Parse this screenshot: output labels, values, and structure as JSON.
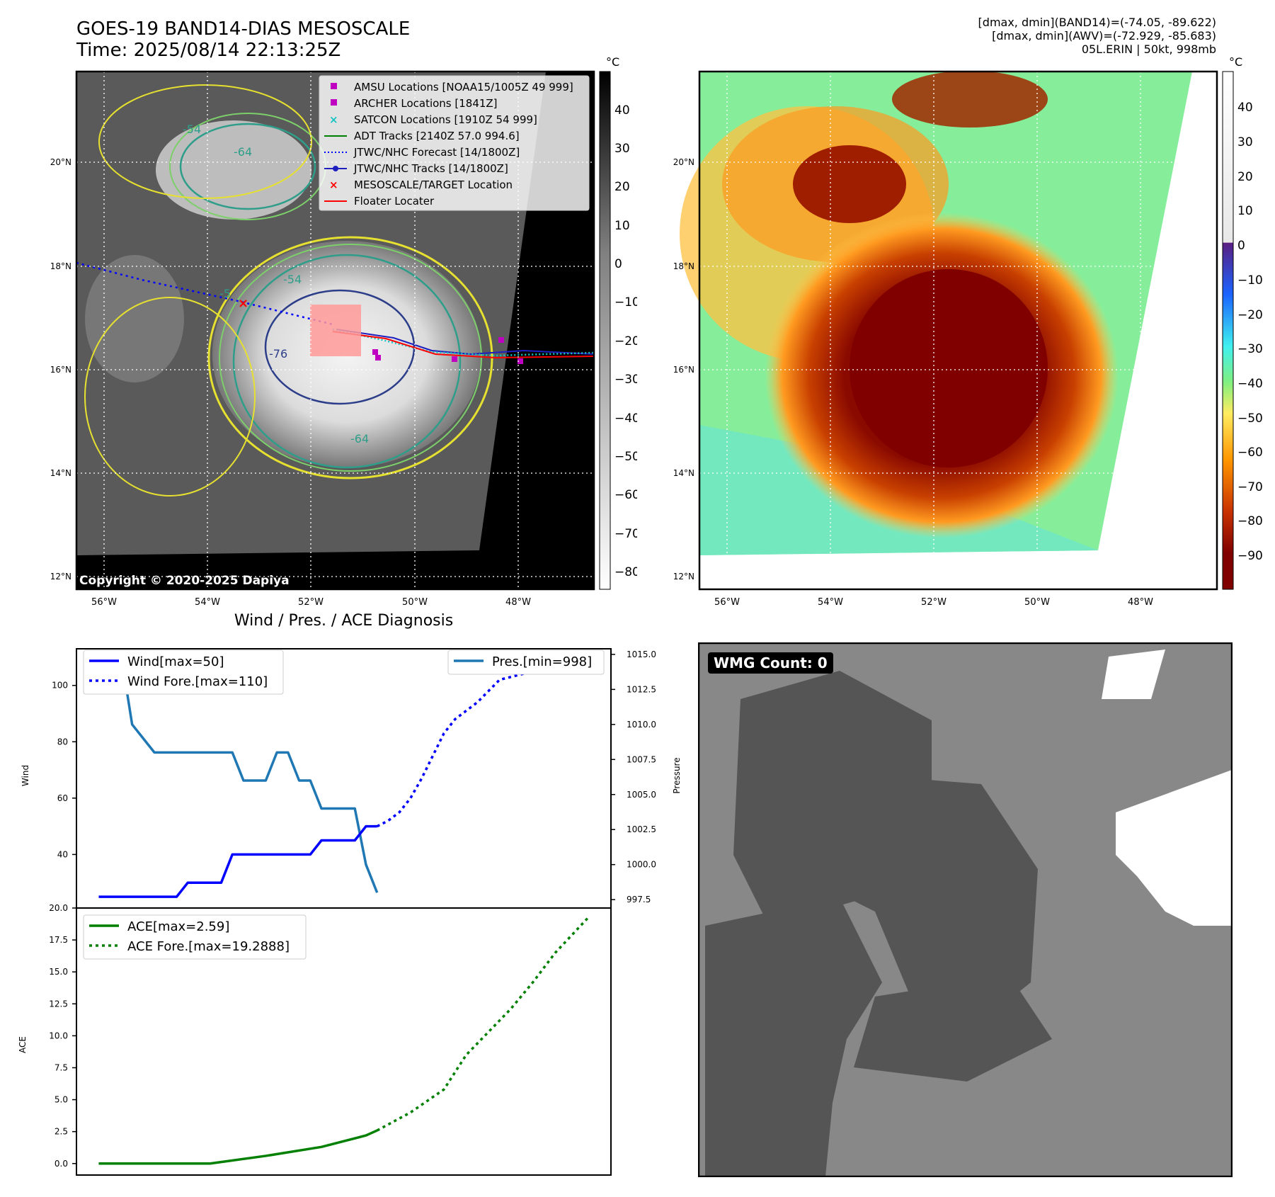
{
  "header": {
    "title_line1": "GOES-19 BAND14-DIAS MESOSCALE",
    "title_line2": "Time: 2025/08/14 22:13:25Z",
    "info_line1": "[dmax, dmin](BAND14)=(-74.05, -89.622)",
    "info_line2": "[dmax, dmin](AWV)=(-72.929, -85.683)",
    "info_line3": "05L.ERIN | 50kt, 998mb"
  },
  "map": {
    "lat_labels": [
      "20°N",
      "18°N",
      "16°N",
      "14°N",
      "12°N"
    ],
    "lon_labels": [
      "56°W",
      "54°W",
      "52°W",
      "50°W",
      "48°W"
    ],
    "copyright": "Copyright © 2020-2025 Dapiya",
    "contour_labels": [
      "-54",
      "-64",
      "-76",
      "-54",
      "-64",
      "-5"
    ],
    "legend": [
      {
        "label": "AMSU Locations [NOAA15/1005Z 49 999]",
        "color": "#c000c0"
      },
      {
        "label": "ARCHER Locations [1841Z]",
        "color": "#c000c0"
      },
      {
        "label": "SATCON Locations [1910Z 54 999]",
        "color": "#17c4c4"
      },
      {
        "label": "ADT Tracks [2140Z 57.0 994.6]",
        "color": "#008000"
      },
      {
        "label": "JTWC/NHC Forecast [14/1800Z]",
        "color": "#0000ff"
      },
      {
        "label": "JTWC/NHC Tracks [14/1800Z]",
        "color": "#1f1fbf"
      },
      {
        "label": "MESOSCALE/TARGET Location",
        "color": "#ff0000"
      },
      {
        "label": "Floater Locater",
        "color": "#ff0000"
      }
    ],
    "gray_colorbar": {
      "unit": "°C",
      "ticks": [
        "40",
        "30",
        "20",
        "10",
        "0",
        "−10",
        "−20",
        "−30",
        "−40",
        "−50",
        "−60",
        "−70",
        "−80"
      ]
    },
    "color_colorbar": {
      "unit": "°C",
      "ticks": [
        "40",
        "30",
        "20",
        "10",
        "0",
        "−10",
        "−20",
        "−30",
        "−40",
        "−50",
        "−60",
        "−70",
        "−80",
        "−90"
      ]
    }
  },
  "diag": {
    "title": "Wind / Pres. / ACE Diagnosis",
    "wind_ylabel": "Wind",
    "pres_ylabel": "Pressure",
    "ace_ylabel": "ACE",
    "wind_legend": [
      "Wind[max=50]",
      "Wind Fore.[max=110]"
    ],
    "pres_legend": "Pres.[min=998]",
    "ace_legend": [
      "ACE[max=2.59]",
      "ACE Fore.[max=19.2888]"
    ]
  },
  "wmg": {
    "label": "WMG Count: 0"
  },
  "chart_data": [
    {
      "type": "line",
      "title": "Wind / Pres. / ACE Diagnosis",
      "ylabel": "Wind",
      "ylim": [
        21,
        113
      ],
      "yticks": [
        40,
        60,
        80,
        100
      ],
      "series": [
        {
          "name": "Wind[max=50]",
          "style": "solid",
          "color": "#0000ff",
          "x": [
            0,
            1,
            2,
            3,
            4,
            5,
            6,
            7,
            8,
            9,
            10,
            11,
            12,
            13,
            14,
            15,
            16,
            17,
            18,
            19,
            20,
            21,
            22,
            23,
            24,
            25
          ],
          "y": [
            25,
            25,
            25,
            25,
            25,
            25,
            25,
            25,
            30,
            30,
            30,
            30,
            40,
            40,
            40,
            40,
            40,
            40,
            40,
            40,
            45,
            45,
            45,
            45,
            50,
            50
          ]
        },
        {
          "name": "Wind Fore.[max=110]",
          "style": "dotted",
          "color": "#0000ff",
          "x": [
            25,
            26,
            27,
            28,
            29,
            30,
            31,
            32,
            33,
            34,
            35,
            36,
            37,
            38,
            39,
            40
          ],
          "y": [
            50,
            52,
            55,
            60,
            67,
            75,
            83,
            88,
            91,
            94,
            98,
            102,
            103,
            104,
            105,
            110
          ]
        }
      ]
    },
    {
      "type": "line",
      "ylabel": "Pressure",
      "ylim": [
        996.9,
        1015.4
      ],
      "yticks": [
        997.5,
        1000.0,
        1002.5,
        1005.0,
        1007.5,
        1010.0,
        1012.5,
        1015.0
      ],
      "series": [
        {
          "name": "Pres.[min=998]",
          "style": "solid",
          "color": "#1f77b4",
          "x": [
            0,
            1,
            2,
            3,
            4,
            5,
            6,
            7,
            8,
            9,
            10,
            11,
            12,
            13,
            14,
            15,
            16,
            17,
            18,
            19,
            20,
            21,
            22,
            23,
            24,
            25
          ],
          "y": [
            1015,
            1015,
            1015,
            1010,
            1009,
            1008,
            1008,
            1008,
            1008,
            1008,
            1008,
            1008,
            1008,
            1006,
            1006,
            1006,
            1008,
            1008,
            1006,
            1006,
            1004,
            1004,
            1004,
            1004,
            1000,
            998
          ]
        }
      ]
    },
    {
      "type": "line",
      "ylabel": "ACE",
      "ylim": [
        -0.9,
        20.0
      ],
      "yticks": [
        0.0,
        2.5,
        5.0,
        7.5,
        10.0,
        12.5,
        15.0,
        17.5,
        20.0
      ],
      "series": [
        {
          "name": "ACE[max=2.59]",
          "style": "solid",
          "color": "#008000",
          "x": [
            0,
            5,
            10,
            15,
            20,
            24,
            25
          ],
          "y": [
            0,
            0,
            0,
            0.6,
            1.3,
            2.2,
            2.59
          ]
        },
        {
          "name": "ACE Fore.[max=19.2888]",
          "style": "dotted",
          "color": "#008000",
          "x": [
            25,
            28,
            31,
            33,
            35,
            37,
            39,
            41,
            44
          ],
          "y": [
            2.59,
            4.0,
            5.8,
            8.5,
            10.3,
            12.1,
            14.2,
            16.5,
            19.29
          ]
        }
      ]
    }
  ]
}
